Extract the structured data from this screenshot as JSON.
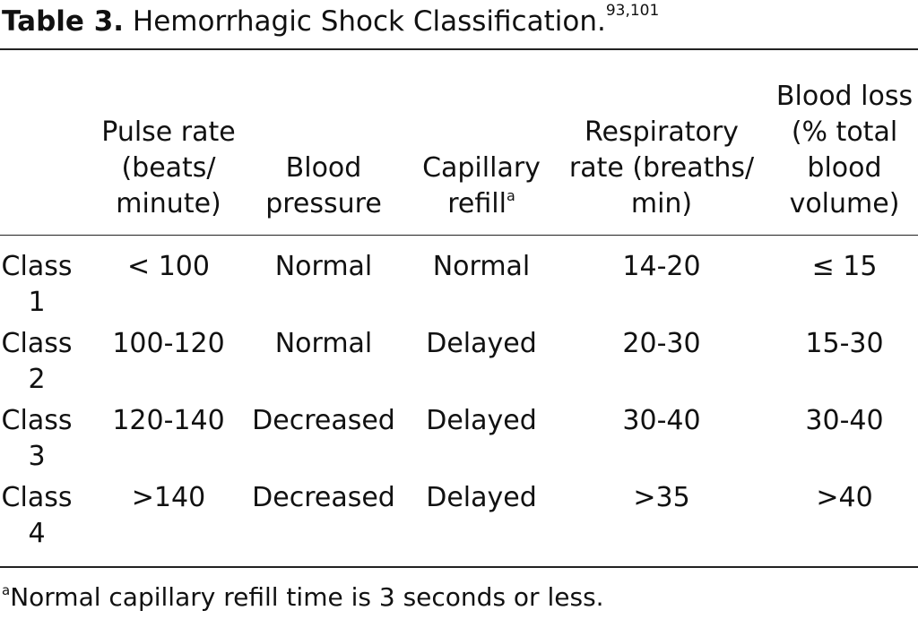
{
  "caption": {
    "label": "Table 3.",
    "title": "Hemorrhagic Shock Classification.",
    "refs": "93,101"
  },
  "headers": {
    "pulse_rate": [
      "Pulse rate",
      "(beats/",
      "minute)"
    ],
    "blood_pressure": [
      "Blood",
      "pressure"
    ],
    "capillary_refill": [
      "Capillary",
      "refill"
    ],
    "capillary_refill_mark": "a",
    "respiratory_rate": [
      "Respiratory",
      "rate (breaths/",
      "min)"
    ],
    "blood_loss": [
      "Blood loss",
      "(% total",
      "blood",
      "volume)"
    ]
  },
  "rows": [
    {
      "class": [
        "Class",
        "1"
      ],
      "pulse": "< 100",
      "bp": "Normal",
      "refill": "Normal",
      "resp": "14-20",
      "loss": "≤ 15"
    },
    {
      "class": [
        "Class",
        "2"
      ],
      "pulse": "100-120",
      "bp": "Normal",
      "refill": "Delayed",
      "resp": "20-30",
      "loss": "15-30"
    },
    {
      "class": [
        "Class",
        "3"
      ],
      "pulse": "120-140",
      "bp": "Decreased",
      "refill": "Delayed",
      "resp": "30-40",
      "loss": "30-40"
    },
    {
      "class": [
        "Class",
        "4"
      ],
      "pulse": ">140",
      "bp": "Decreased",
      "refill": "Delayed",
      "resp": ">35",
      "loss": ">40"
    }
  ],
  "footnote": {
    "mark": "a",
    "text": "Normal capillary refill time is 3 seconds or less."
  }
}
